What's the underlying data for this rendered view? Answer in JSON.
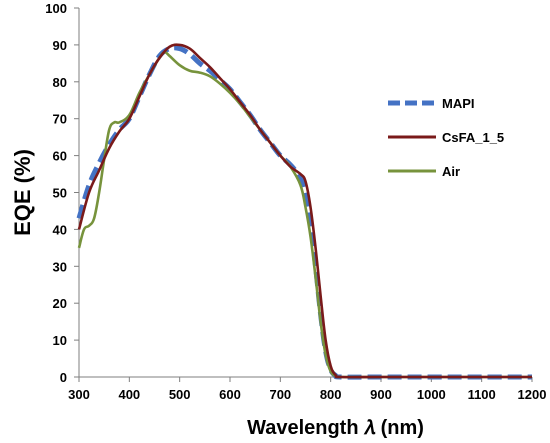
{
  "chart_data": {
    "type": "line",
    "xlabel": "Wavelength 𝜆 (nm)",
    "ylabel": "EQE (%)",
    "xlim": [
      300,
      1200
    ],
    "ylim": [
      0,
      100
    ],
    "x_ticks": [
      "300",
      "400",
      "500",
      "600",
      "700",
      "800",
      "900",
      "1000",
      "1100",
      "1200"
    ],
    "y_ticks": [
      "0",
      "10",
      "20",
      "30",
      "40",
      "50",
      "60",
      "70",
      "80",
      "90",
      "100"
    ],
    "grid": false,
    "legend_position": "right",
    "series": [
      {
        "name": "MAPI",
        "color": "#4472c4",
        "style": "dashed",
        "points": [
          [
            300,
            43
          ],
          [
            320,
            52
          ],
          [
            340,
            58
          ],
          [
            360,
            63
          ],
          [
            380,
            67
          ],
          [
            400,
            70
          ],
          [
            420,
            76
          ],
          [
            440,
            82
          ],
          [
            460,
            87
          ],
          [
            480,
            89
          ],
          [
            500,
            89
          ],
          [
            520,
            87.5
          ],
          [
            540,
            85
          ],
          [
            560,
            83
          ],
          [
            580,
            80.5
          ],
          [
            600,
            78
          ],
          [
            620,
            74.5
          ],
          [
            640,
            71
          ],
          [
            660,
            67
          ],
          [
            680,
            63.5
          ],
          [
            700,
            60
          ],
          [
            720,
            57.5
          ],
          [
            740,
            54
          ],
          [
            750,
            50
          ],
          [
            760,
            42
          ],
          [
            770,
            30
          ],
          [
            780,
            17
          ],
          [
            790,
            7
          ],
          [
            800,
            2
          ],
          [
            810,
            0.4
          ],
          [
            820,
            0
          ],
          [
            900,
            0
          ],
          [
            1000,
            0
          ],
          [
            1100,
            0
          ],
          [
            1200,
            0
          ]
        ]
      },
      {
        "name": "CsFA_1_5",
        "color": "#7a1a1a",
        "style": "solid",
        "points": [
          [
            300,
            40
          ],
          [
            320,
            50
          ],
          [
            340,
            56
          ],
          [
            360,
            62
          ],
          [
            380,
            66.5
          ],
          [
            400,
            70
          ],
          [
            420,
            76
          ],
          [
            440,
            82
          ],
          [
            460,
            86.5
          ],
          [
            480,
            89.5
          ],
          [
            500,
            90
          ],
          [
            520,
            89
          ],
          [
            540,
            86.5
          ],
          [
            560,
            84
          ],
          [
            580,
            81
          ],
          [
            600,
            78
          ],
          [
            620,
            74.5
          ],
          [
            640,
            71
          ],
          [
            660,
            67
          ],
          [
            680,
            63.5
          ],
          [
            700,
            60
          ],
          [
            720,
            57
          ],
          [
            740,
            55
          ],
          [
            750,
            53
          ],
          [
            760,
            46
          ],
          [
            770,
            35
          ],
          [
            780,
            22
          ],
          [
            790,
            10
          ],
          [
            800,
            3
          ],
          [
            810,
            0.5
          ],
          [
            820,
            0
          ],
          [
            900,
            0
          ],
          [
            1000,
            0
          ],
          [
            1100,
            0
          ],
          [
            1200,
            0
          ]
        ]
      },
      {
        "name": "Air",
        "color": "#77933c",
        "style": "solid",
        "points": [
          [
            300,
            35
          ],
          [
            310,
            40
          ],
          [
            320,
            41
          ],
          [
            330,
            43
          ],
          [
            340,
            50
          ],
          [
            350,
            59
          ],
          [
            360,
            67
          ],
          [
            370,
            69
          ],
          [
            380,
            69
          ],
          [
            400,
            71
          ],
          [
            420,
            77
          ],
          [
            440,
            82
          ],
          [
            460,
            86.5
          ],
          [
            470,
            88
          ],
          [
            480,
            87
          ],
          [
            500,
            84.5
          ],
          [
            520,
            83
          ],
          [
            540,
            82.5
          ],
          [
            560,
            81.5
          ],
          [
            580,
            79.5
          ],
          [
            600,
            77
          ],
          [
            620,
            74
          ],
          [
            640,
            70.5
          ],
          [
            660,
            67
          ],
          [
            680,
            63.5
          ],
          [
            700,
            60
          ],
          [
            720,
            57
          ],
          [
            740,
            52
          ],
          [
            750,
            46
          ],
          [
            760,
            38
          ],
          [
            770,
            27
          ],
          [
            780,
            15
          ],
          [
            790,
            6
          ],
          [
            800,
            1.5
          ],
          [
            810,
            0.3
          ],
          [
            820,
            0
          ],
          [
            900,
            0
          ],
          [
            1000,
            0
          ],
          [
            1100,
            0
          ],
          [
            1200,
            0
          ]
        ]
      }
    ]
  }
}
